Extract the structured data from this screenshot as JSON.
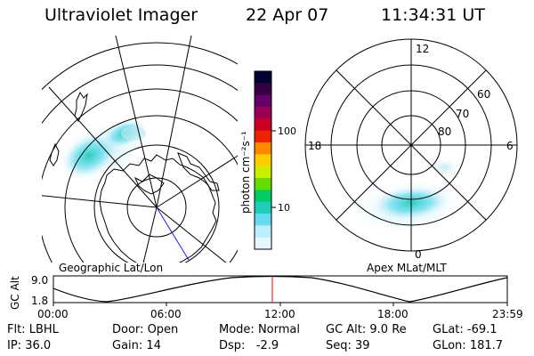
{
  "header": {
    "instrument": "Ultraviolet Imager",
    "date": "22 Apr 07",
    "time": "11:34:31 UT"
  },
  "geo_panel": {
    "caption": "Geographic Lat/Lon"
  },
  "mag_panel": {
    "caption": "Apex MLat/MLT",
    "mlt_labels": {
      "top": "12",
      "left": "18",
      "right": "6",
      "bottom": "0"
    },
    "lat_labels": [
      "60",
      "70",
      "80"
    ]
  },
  "colorbar": {
    "label": "photon cm⁻²s⁻¹",
    "ticks": [
      "100",
      "10"
    ],
    "colors": [
      "#000033",
      "#330044",
      "#660066",
      "#990055",
      "#cc0022",
      "#ee2200",
      "#ff8800",
      "#ffcc00",
      "#ccee00",
      "#66dd00",
      "#00cc66",
      "#22ccbb",
      "#66ddee",
      "#bbeeff",
      "#e6f7ff"
    ]
  },
  "altitude_plot": {
    "ylabel": "GC Alt",
    "ymax_label": "9.0",
    "ymin_label": "1.8",
    "x_ticks": [
      "00:00",
      "06:00",
      "12:00",
      "18:00",
      "23:59"
    ],
    "current_time_marker_color": "#ff0000"
  },
  "status": {
    "filter_label": "Flt:",
    "filter": "LBHL",
    "door_label": "Door:",
    "door": "Open",
    "mode_label": "Mode:",
    "mode": "Normal",
    "gcalt_label": "GC Alt:",
    "gcalt": "9.0 Re",
    "glat_label": "GLat:",
    "glat": "-69.1",
    "ip_label": "IP:",
    "ip": "36.0",
    "gain_label": "Gain:",
    "gain": "14",
    "dsp_label": "Dsp:",
    "dsp": "-2.9",
    "seq_label": "Seq:",
    "seq": "39",
    "glon_label": "GLon:",
    "glon": "181.7"
  }
}
